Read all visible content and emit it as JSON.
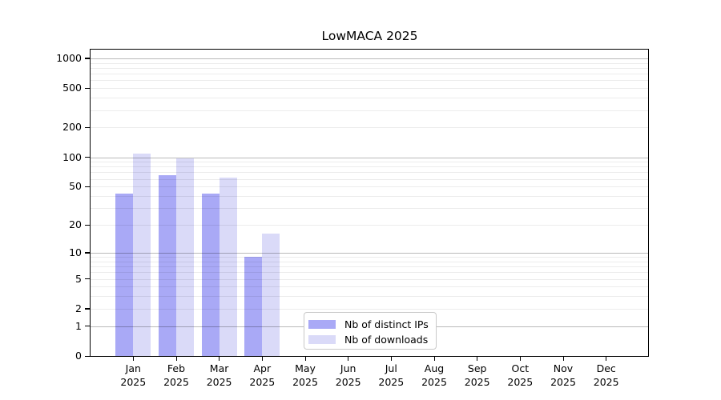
{
  "chart_data": {
    "type": "bar",
    "title": "LowMACA 2025",
    "categories": [
      "Jan",
      "Feb",
      "Mar",
      "Apr",
      "May",
      "Jun",
      "Jul",
      "Aug",
      "Sep",
      "Oct",
      "Nov",
      "Dec"
    ],
    "x_tick_year": "2025",
    "series": [
      {
        "name": "Nb of distinct IPs",
        "color": "#a9a9f6",
        "values": [
          42,
          65,
          42,
          9,
          0,
          0,
          0,
          0,
          0,
          0,
          0,
          0
        ]
      },
      {
        "name": "Nb of downloads",
        "color": "#dadaf8",
        "values": [
          108,
          97,
          62,
          16,
          0,
          0,
          0,
          0,
          0,
          0,
          0,
          0
        ]
      }
    ],
    "y_axis": {
      "scale": "log1p",
      "tick_values": [
        0,
        1,
        2,
        5,
        10,
        20,
        50,
        100,
        200,
        500,
        1000
      ],
      "tick_labels": [
        "0",
        "1",
        "2",
        "5",
        "10",
        "20",
        "50",
        "100",
        "200",
        "500",
        "1000"
      ],
      "major_gridlines": [
        1,
        10,
        100,
        1000
      ],
      "minor_gridlines": [
        2,
        3,
        4,
        5,
        6,
        7,
        8,
        9,
        20,
        30,
        40,
        50,
        60,
        70,
        80,
        90,
        200,
        300,
        400,
        500,
        600,
        700,
        800,
        900
      ],
      "range_max": 1000
    },
    "legend": {
      "position": "inside-bottom-center",
      "entries": [
        {
          "label": "Nb of distinct IPs",
          "color": "#a9a9f6"
        },
        {
          "label": "Nb of downloads",
          "color": "#dadaf8"
        }
      ]
    },
    "colors": {
      "bar_distinct_ips": "#a9a9f6",
      "bar_downloads": "#dadaf8",
      "major_grid": "rgba(0,0,0,0.27)",
      "minor_grid": "rgba(0,0,0,0.08)",
      "axis": "#000000",
      "background": "#ffffff"
    }
  }
}
